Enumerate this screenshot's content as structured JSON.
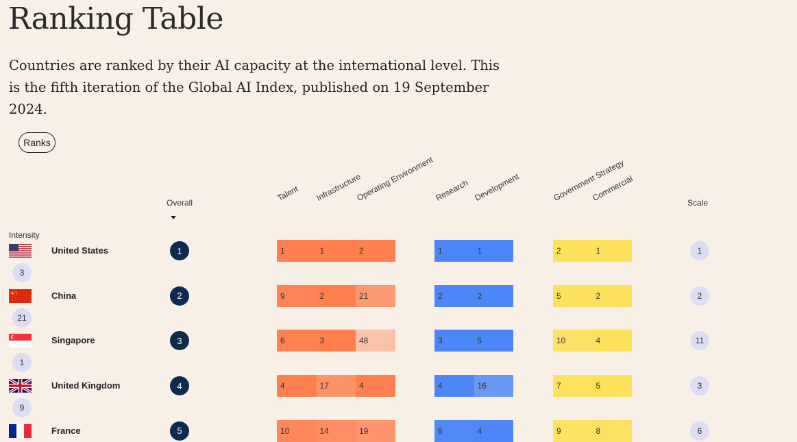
{
  "title": "Ranking Table",
  "description": "Countries are ranked by their AI capacity at the international level. This is the fifth iteration of the Global AI Index, published on 19 September 2024.",
  "ranks_button": "Ranks",
  "columns": {
    "overall": "Overall",
    "talent": "Talent",
    "infrastructure": "Infrastructure",
    "operating_environment": "Operating Environment",
    "research": "Research",
    "development": "Development",
    "government_strategy": "Government Strategy",
    "commercial": "Commercial",
    "scale": "Scale",
    "intensity": "Intensity"
  },
  "colors": {
    "implementation": "#ff7f4f",
    "innovation": "#4d86f7",
    "investment": "#fde15b",
    "overall_badge": "#0d2a4f",
    "pill": "#dcdcf5"
  },
  "rows": [
    {
      "country": "United States",
      "flag": "us-flag-icon",
      "overall": "1",
      "intensity": "3",
      "talent": "1",
      "infrastructure": "1",
      "operating_environment": "2",
      "research": "1",
      "development": "1",
      "government_strategy": "2",
      "commercial": "1",
      "scale": "1"
    },
    {
      "country": "China",
      "flag": "cn-flag-icon",
      "overall": "2",
      "intensity": "21",
      "talent": "9",
      "infrastructure": "2",
      "operating_environment": "21",
      "research": "2",
      "development": "2",
      "government_strategy": "5",
      "commercial": "2",
      "scale": "2"
    },
    {
      "country": "Singapore",
      "flag": "sg-flag-icon",
      "overall": "3",
      "intensity": "1",
      "talent": "6",
      "infrastructure": "3",
      "operating_environment": "48",
      "research": "3",
      "development": "5",
      "government_strategy": "10",
      "commercial": "4",
      "scale": "11"
    },
    {
      "country": "United Kingdom",
      "flag": "uk-flag-icon",
      "overall": "4",
      "intensity": "9",
      "talent": "4",
      "infrastructure": "17",
      "operating_environment": "4",
      "research": "4",
      "development": "16",
      "government_strategy": "7",
      "commercial": "5",
      "scale": "3"
    },
    {
      "country": "France",
      "flag": "fr-flag-icon",
      "overall": "5",
      "intensity": "",
      "talent": "10",
      "infrastructure": "14",
      "operating_environment": "19",
      "research": "6",
      "development": "4",
      "government_strategy": "9",
      "commercial": "8",
      "scale": "6"
    }
  ]
}
